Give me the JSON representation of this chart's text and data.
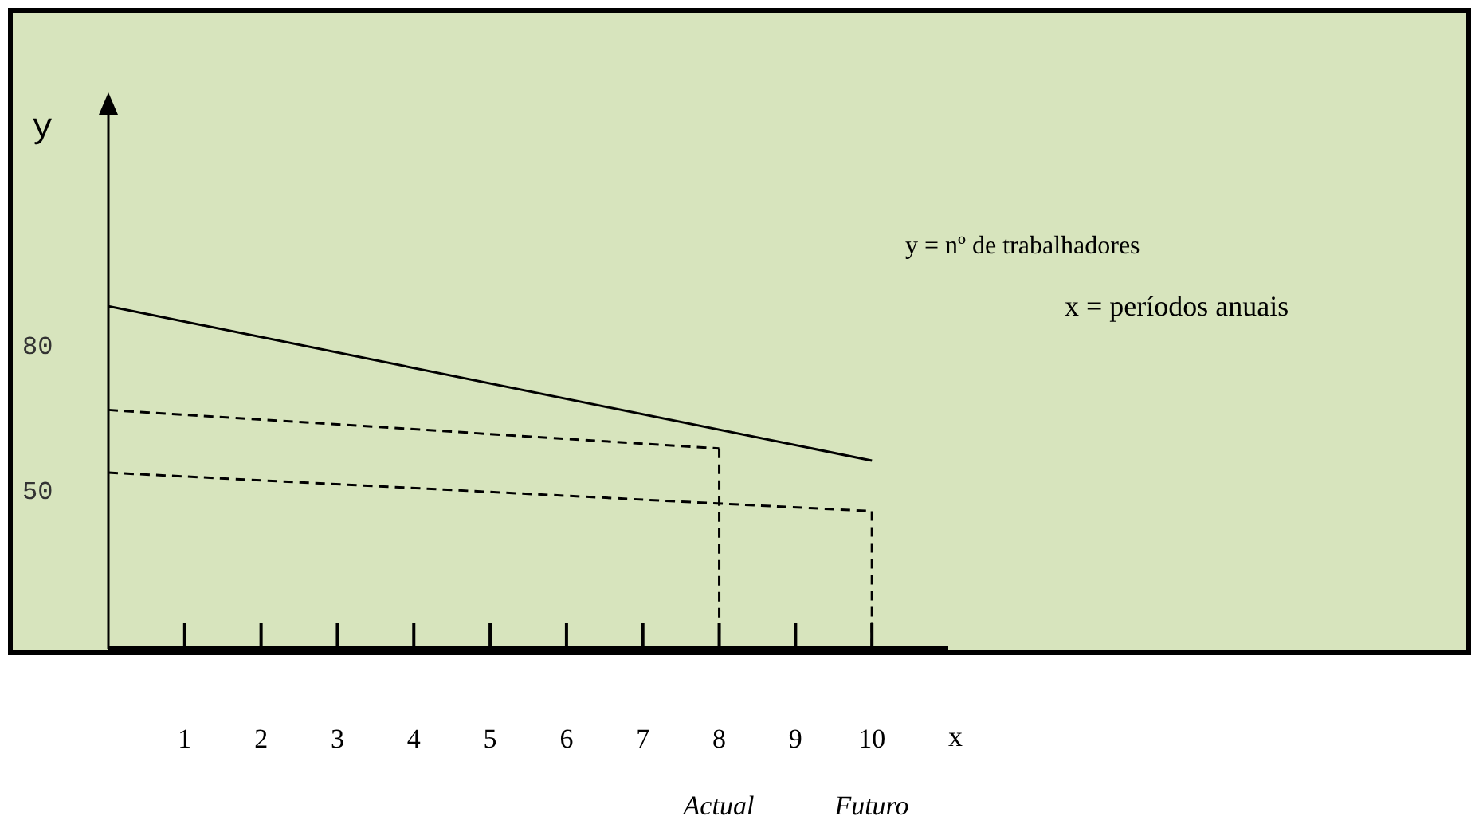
{
  "chart_data": {
    "type": "line",
    "xlabel": "x",
    "ylabel": "y",
    "xlim": [
      0,
      11
    ],
    "xticks": [
      1,
      2,
      3,
      4,
      5,
      6,
      7,
      8,
      9,
      10
    ],
    "ylim": [
      17,
      130
    ],
    "yticks": [
      50,
      80
    ],
    "marker": "none",
    "series": [
      {
        "color": "#000000",
        "line_style": "solid",
        "x": [
          0,
          10
        ],
        "values": [
          88,
          56
        ]
      },
      {
        "color": "#000000",
        "line_style": "dashed",
        "x": [
          0,
          8
        ],
        "values": [
          66.5,
          58.5
        ]
      },
      {
        "color": "#000000",
        "line_style": "dashed",
        "x": [
          0,
          10
        ],
        "values": [
          53.5,
          45.5
        ]
      },
      {
        "color": "#000000",
        "line_style": "dashed",
        "x": [
          8,
          8
        ],
        "values": [
          58.5,
          17
        ]
      },
      {
        "color": "#000000",
        "line_style": "dashed",
        "x": [
          10,
          10
        ],
        "values": [
          45.5,
          17
        ]
      }
    ],
    "annotations": [
      "y = nº de trabalhadores",
      "x = períodos anuais",
      "Actual",
      "Futuro"
    ]
  }
}
